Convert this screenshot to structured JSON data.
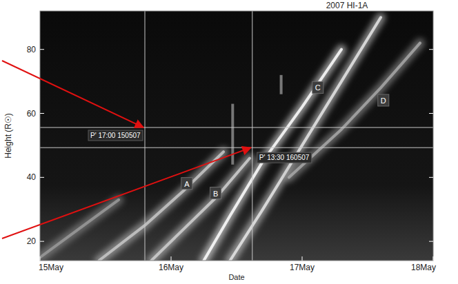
{
  "chart_data": {
    "type": "j-map",
    "title": "2007 HI-1A",
    "x_label": "Date",
    "y_label": "Height (R☉)",
    "xlim": [
      15,
      18
    ],
    "ylim": [
      14,
      92
    ],
    "xticks": [
      {
        "value": 15,
        "label": "15May"
      },
      {
        "value": 16,
        "label": "16May"
      },
      {
        "value": 17,
        "label": "17May"
      },
      {
        "value": 18,
        "label": "18May"
      }
    ],
    "yticks": [
      20,
      40,
      60,
      80
    ],
    "series": [
      {
        "color": "#9a9a9a",
        "x": [
          15.0,
          15.3,
          15.6
        ],
        "values": [
          15,
          24,
          33
        ]
      },
      {
        "color": "#c8c8c8",
        "x": [
          15.45,
          15.8,
          16.1,
          16.4
        ],
        "values": [
          14,
          25,
          36,
          48
        ]
      },
      {
        "color": "#d0d0d0",
        "x": [
          15.85,
          16.1,
          16.35,
          16.6
        ],
        "values": [
          14,
          24,
          34,
          46
        ]
      },
      {
        "color": "#ffffff",
        "x": [
          16.25,
          16.45,
          16.7,
          17.0,
          17.3
        ],
        "values": [
          14,
          28,
          45,
          62,
          80
        ]
      },
      {
        "color": "#e6e6e6",
        "x": [
          16.45,
          16.7,
          17.0,
          17.3,
          17.6
        ],
        "values": [
          14,
          30,
          50,
          70,
          90
        ]
      },
      {
        "color": "#a8a8a8",
        "x": [
          16.9,
          17.3,
          17.6,
          17.9
        ],
        "values": [
          40,
          55,
          68,
          82
        ]
      }
    ],
    "annotations": [
      {
        "text": "A",
        "x": 16.12,
        "y": 38
      },
      {
        "text": "B",
        "x": 16.34,
        "y": 35
      },
      {
        "text": "C",
        "x": 17.12,
        "y": 68
      },
      {
        "text": "D",
        "x": 17.62,
        "y": 64
      }
    ],
    "crosshairs": [
      {
        "text": "P' 17:00 150507",
        "x": 15.8,
        "y": 55.6
      },
      {
        "text": "P' 13:30 160507",
        "x": 16.62,
        "y": 49.3
      }
    ],
    "segments": [
      {
        "x": 16.47,
        "y": [
          44,
          63
        ]
      },
      {
        "x": 16.84,
        "y": [
          66,
          72
        ]
      }
    ]
  }
}
